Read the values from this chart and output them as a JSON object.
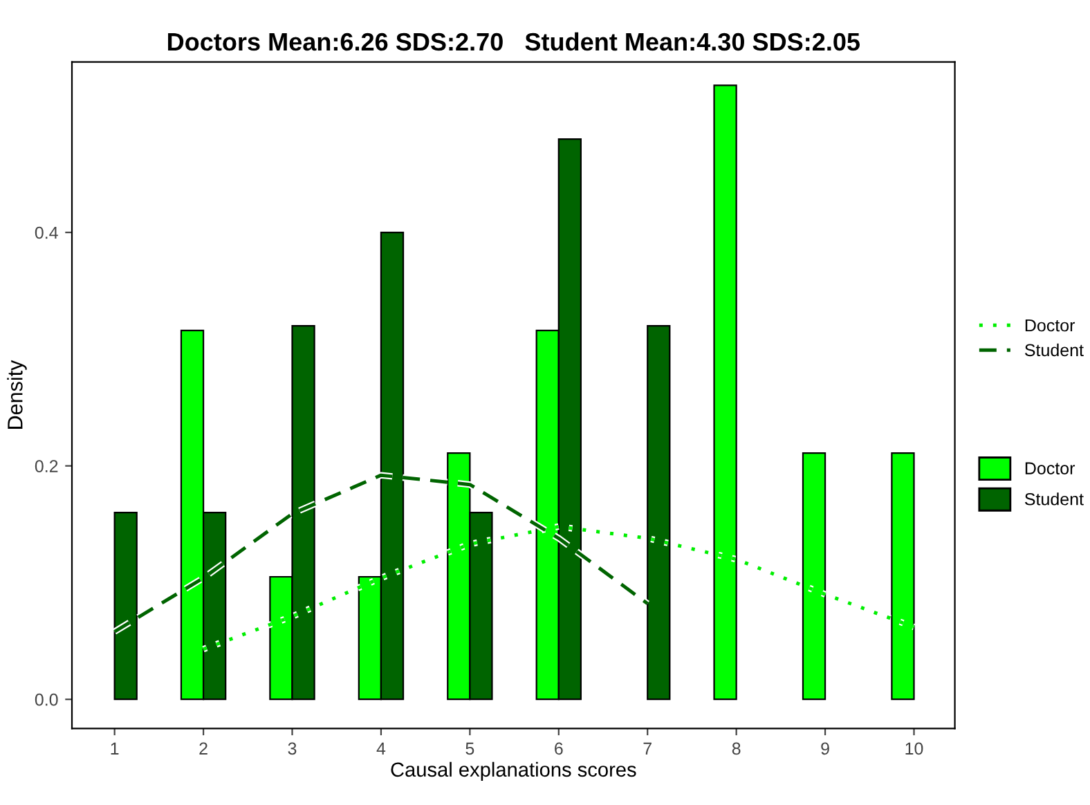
{
  "chart_data": {
    "type": "bar",
    "title": "Doctors Mean:6.26 SDS:2.70   Student Mean:4.30 SDS:2.05",
    "xlabel": "Causal explanations scores",
    "ylabel": "Density",
    "x": [
      1,
      2,
      3,
      4,
      5,
      6,
      7,
      8,
      9,
      10
    ],
    "series": [
      {
        "name": "Doctor",
        "type": "line",
        "line_style": "dotted",
        "color": "#00ee00",
        "x": [
          2,
          3,
          4,
          5,
          6,
          7,
          8,
          9,
          10
        ],
        "values": [
          0.043,
          0.071,
          0.104,
          0.133,
          0.148,
          0.138,
          0.12,
          0.09,
          0.062
        ]
      },
      {
        "name": "Student",
        "type": "line",
        "line_style": "dashed",
        "color": "#006400",
        "x": [
          1,
          2,
          3,
          4,
          5,
          6,
          7
        ],
        "values": [
          0.058,
          0.104,
          0.159,
          0.192,
          0.184,
          0.138,
          0.082
        ]
      },
      {
        "name": "Doctor",
        "color": "#00ff00",
        "values": [
          null,
          0.316,
          0.105,
          0.105,
          0.211,
          0.316,
          null,
          0.526,
          0.211,
          0.211
        ]
      },
      {
        "name": "Student",
        "color": "#006400",
        "values": [
          0.16,
          0.16,
          0.32,
          0.4,
          0.16,
          0.48,
          0.32,
          null,
          null,
          null
        ]
      }
    ],
    "xlim": [
      0.52,
      10.46
    ],
    "xticks": [
      1,
      2,
      3,
      4,
      5,
      6,
      7,
      8,
      9,
      10
    ],
    "ylim": [
      -0.025,
      0.546
    ],
    "yticks": [
      {
        "value": 0,
        "label": "0.0"
      },
      {
        "value": 0.2,
        "label": "0.2"
      },
      {
        "value": 0.4,
        "label": "0.4"
      }
    ],
    "grid": false,
    "legend": "right"
  }
}
